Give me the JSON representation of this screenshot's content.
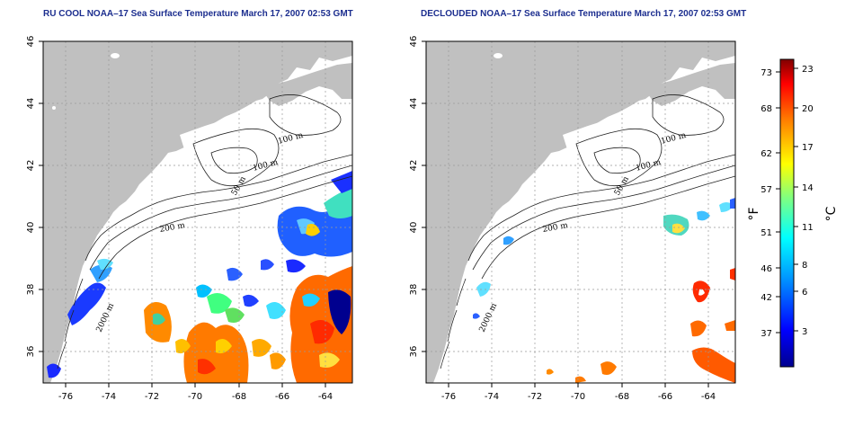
{
  "panels": [
    {
      "title": "RU COOL NOAA–17 Sea Surface Temperature March 17, 2007 02:53 GMT",
      "contour_labels": [
        "100 m",
        "100 m",
        "50 m",
        "200 m",
        "2000 m"
      ]
    },
    {
      "title": "DECLOUDED NOAA–17 Sea Surface Temperature March 17, 2007 02:53 GMT",
      "contour_labels": [
        "100 m",
        "100 m",
        "50 m",
        "200 m",
        "2000 m"
      ]
    }
  ],
  "axes": {
    "lon_ticks": [
      "-76",
      "-74",
      "-72",
      "-70",
      "-68",
      "-66",
      "-64"
    ],
    "lat_ticks": [
      "46",
      "44",
      "42",
      "40",
      "38",
      "36"
    ],
    "lon_range": [
      -77.3,
      -63.0
    ],
    "lat_range": [
      35.0,
      46.0
    ]
  },
  "colorbar": {
    "fahrenheit_ticks": [
      "73",
      "68",
      "62",
      "57",
      "51",
      "46",
      "42",
      "37"
    ],
    "celsius_ticks": [
      "23",
      "20",
      "17",
      "14",
      "11",
      "8",
      "6",
      "3"
    ],
    "fahrenheit_label": "°F",
    "celsius_label": "°C"
  },
  "colors": {
    "land": "#c0c0c0",
    "title": "#1c2e8f",
    "colormap": [
      "#00008f",
      "#0000ff",
      "#00a0ff",
      "#00ffff",
      "#80ff80",
      "#ffff00",
      "#ff8000",
      "#ff0000",
      "#800000"
    ]
  }
}
